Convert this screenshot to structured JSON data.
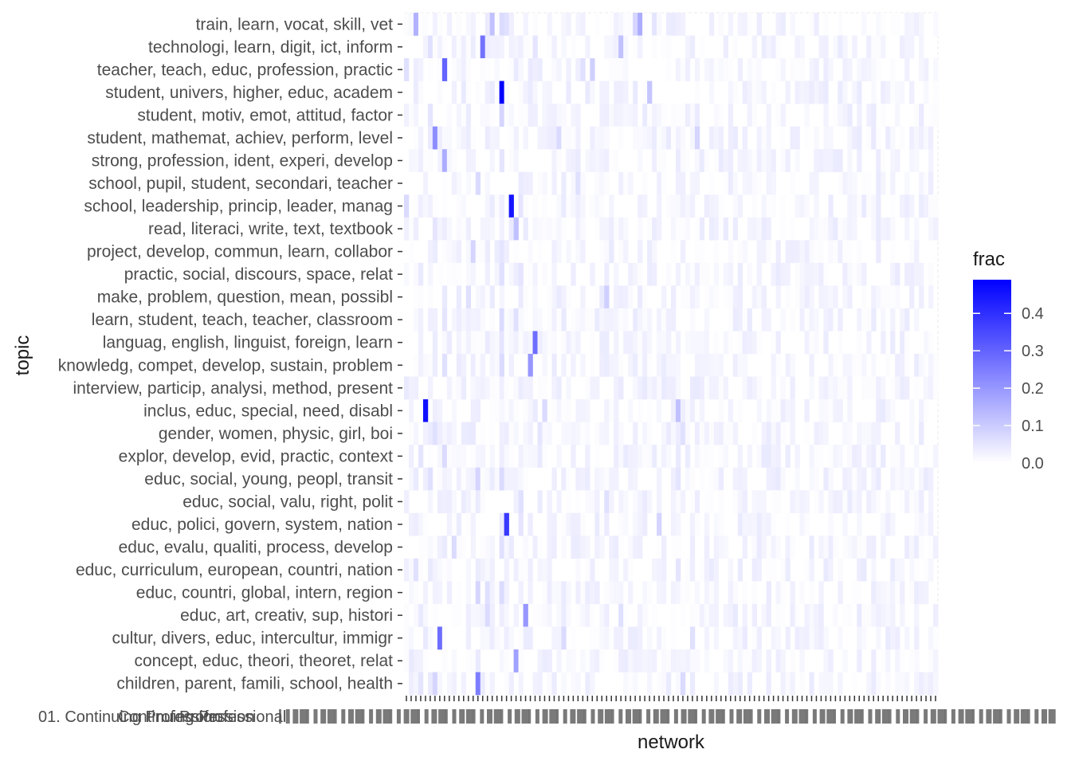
{
  "chart_data": {
    "type": "heatmap",
    "xlabel": "network",
    "ylabel": "topic",
    "legend": {
      "title": "frac",
      "ticks": [
        0.0,
        0.1,
        0.2,
        0.3,
        0.4
      ],
      "tick_labels": [
        "0.0",
        "0.1",
        "0.2",
        "0.3",
        "0.4"
      ],
      "range": [
        0,
        0.49
      ],
      "low_color": "#ffffff",
      "high_color": "#0000ff",
      "placement": "right"
    },
    "y_categories": [
      "train, learn, vocat, skill, vet",
      "technologi, learn, digit, ict, inform",
      "teacher, teach, educ, profession, practic",
      "student, univers, higher, educ, academ",
      "student, motiv, emot, attitud, factor",
      "student, mathemat, achiev, perform, level",
      "strong, profession, ident, experi, develop",
      "school, pupil, student, secondari, teacher",
      "school, leadership, princip, leader, manag",
      "read, literaci, write, text, textbook",
      "project, develop, commun, learn, collabor",
      "practic, social, discours, space, relat",
      "make, problem, question, mean, possibl",
      "learn, student, teach, teacher, classroom",
      "languag, english, linguist, foreign, learn",
      "knowledg, compet, develop, sustain, problem",
      "interview, particip, analysi, method, present",
      "inclus, educ, special, need, disabl",
      "gender, women, physic, girl, boi",
      "explor, develop, evid, practic, context",
      "educ, social, young, peopl, transit",
      "educ, social, valu, right, polit",
      "educ, polici, govern, system, nation",
      "educ, evalu, qualiti, process, develop",
      "educ, curriculum, european, countri, nation",
      "educ, countri, global, intern, region",
      "educ, art, creativ, sup, histori",
      "cultur, divers, educ, intercultur, immigr",
      "concept, educ, theori, theoret, relat",
      "children, parent, famili, school, health"
    ],
    "x_network_count": 112,
    "x_tick_label_first": "01. Continuing Profession",
    "x_tick_labels_visible": [
      "01. Continuing Profession",
      "Continuing Professional",
      "Profession"
    ],
    "background_value": 0.01,
    "highlights": [
      {
        "topic": 0,
        "network": 2,
        "value": 0.15
      },
      {
        "topic": 0,
        "network": 18,
        "value": 0.12
      },
      {
        "topic": 0,
        "network": 20,
        "value": 0.07
      },
      {
        "topic": 0,
        "network": 21,
        "value": 0.06
      },
      {
        "topic": 0,
        "network": 48,
        "value": 0.08
      },
      {
        "topic": 0,
        "network": 49,
        "value": 0.16
      },
      {
        "topic": 0,
        "network": 52,
        "value": 0.05
      },
      {
        "topic": 1,
        "network": 5,
        "value": 0.06
      },
      {
        "topic": 1,
        "network": 16,
        "value": 0.27
      },
      {
        "topic": 1,
        "network": 27,
        "value": 0.05
      },
      {
        "topic": 1,
        "network": 45,
        "value": 0.12
      },
      {
        "topic": 2,
        "network": 0,
        "value": 0.06
      },
      {
        "topic": 2,
        "network": 8,
        "value": 0.3
      },
      {
        "topic": 2,
        "network": 37,
        "value": 0.06
      },
      {
        "topic": 2,
        "network": 39,
        "value": 0.09
      },
      {
        "topic": 3,
        "network": 20,
        "value": 0.49
      },
      {
        "topic": 3,
        "network": 51,
        "value": 0.11
      },
      {
        "topic": 3,
        "network": 12,
        "value": 0.04
      },
      {
        "topic": 4,
        "network": 20,
        "value": 0.08
      },
      {
        "topic": 4,
        "network": 5,
        "value": 0.05
      },
      {
        "topic": 5,
        "network": 6,
        "value": 0.22
      },
      {
        "topic": 5,
        "network": 32,
        "value": 0.07
      },
      {
        "topic": 5,
        "network": 61,
        "value": 0.08
      },
      {
        "topic": 6,
        "network": 8,
        "value": 0.16
      },
      {
        "topic": 6,
        "network": 20,
        "value": 0.05
      },
      {
        "topic": 7,
        "network": 15,
        "value": 0.07
      },
      {
        "topic": 7,
        "network": 36,
        "value": 0.06
      },
      {
        "topic": 8,
        "network": 22,
        "value": 0.45
      },
      {
        "topic": 8,
        "network": 0,
        "value": 0.07
      },
      {
        "topic": 8,
        "network": 24,
        "value": 0.05
      },
      {
        "topic": 9,
        "network": 23,
        "value": 0.12
      },
      {
        "topic": 9,
        "network": 6,
        "value": 0.05
      },
      {
        "topic": 10,
        "network": 14,
        "value": 0.08
      },
      {
        "topic": 10,
        "network": 20,
        "value": 0.05
      },
      {
        "topic": 11,
        "network": 20,
        "value": 0.06
      },
      {
        "topic": 11,
        "network": 24,
        "value": 0.05
      },
      {
        "topic": 12,
        "network": 13,
        "value": 0.06
      },
      {
        "topic": 12,
        "network": 42,
        "value": 0.09
      },
      {
        "topic": 13,
        "network": 20,
        "value": 0.07
      },
      {
        "topic": 13,
        "network": 23,
        "value": 0.06
      },
      {
        "topic": 13,
        "network": 8,
        "value": 0.05
      },
      {
        "topic": 14,
        "network": 27,
        "value": 0.28
      },
      {
        "topic": 14,
        "network": 20,
        "value": 0.05
      },
      {
        "topic": 15,
        "network": 26,
        "value": 0.2
      },
      {
        "topic": 15,
        "network": 20,
        "value": 0.07
      },
      {
        "topic": 15,
        "network": 8,
        "value": 0.06
      },
      {
        "topic": 16,
        "network": 0,
        "value": 0.04
      },
      {
        "topic": 16,
        "network": 50,
        "value": 0.04
      },
      {
        "topic": 17,
        "network": 4,
        "value": 0.46
      },
      {
        "topic": 17,
        "network": 57,
        "value": 0.12
      },
      {
        "topic": 17,
        "network": 29,
        "value": 0.07
      },
      {
        "topic": 18,
        "network": 6,
        "value": 0.06
      },
      {
        "topic": 18,
        "network": 28,
        "value": 0.05
      },
      {
        "topic": 18,
        "network": 58,
        "value": 0.06
      },
      {
        "topic": 19,
        "network": 8,
        "value": 0.07
      },
      {
        "topic": 19,
        "network": 3,
        "value": 0.05
      },
      {
        "topic": 20,
        "network": 15,
        "value": 0.08
      },
      {
        "topic": 20,
        "network": 20,
        "value": 0.07
      },
      {
        "topic": 20,
        "network": 5,
        "value": 0.06
      },
      {
        "topic": 20,
        "network": 57,
        "value": 0.05
      },
      {
        "topic": 21,
        "network": 24,
        "value": 0.06
      },
      {
        "topic": 21,
        "network": 42,
        "value": 0.06
      },
      {
        "topic": 22,
        "network": 21,
        "value": 0.38
      },
      {
        "topic": 22,
        "network": 53,
        "value": 0.08
      },
      {
        "topic": 22,
        "network": 24,
        "value": 0.05
      },
      {
        "topic": 23,
        "network": 10,
        "value": 0.07
      },
      {
        "topic": 23,
        "network": 20,
        "value": 0.06
      },
      {
        "topic": 24,
        "network": 2,
        "value": 0.06
      },
      {
        "topic": 24,
        "network": 57,
        "value": 0.05
      },
      {
        "topic": 25,
        "network": 15,
        "value": 0.08
      },
      {
        "topic": 25,
        "network": 20,
        "value": 0.07
      },
      {
        "topic": 25,
        "network": 17,
        "value": 0.06
      },
      {
        "topic": 26,
        "network": 25,
        "value": 0.2
      },
      {
        "topic": 26,
        "network": 17,
        "value": 0.07
      },
      {
        "topic": 26,
        "network": 45,
        "value": 0.06
      },
      {
        "topic": 27,
        "network": 7,
        "value": 0.28
      },
      {
        "topic": 27,
        "network": 33,
        "value": 0.07
      },
      {
        "topic": 27,
        "network": 60,
        "value": 0.06
      },
      {
        "topic": 28,
        "network": 23,
        "value": 0.18
      },
      {
        "topic": 28,
        "network": 1,
        "value": 0.04
      },
      {
        "topic": 29,
        "network": 15,
        "value": 0.25
      },
      {
        "topic": 29,
        "network": 6,
        "value": 0.08
      },
      {
        "topic": 29,
        "network": 58,
        "value": 0.07
      },
      {
        "topic": 29,
        "network": 3,
        "value": 0.05
      }
    ]
  }
}
